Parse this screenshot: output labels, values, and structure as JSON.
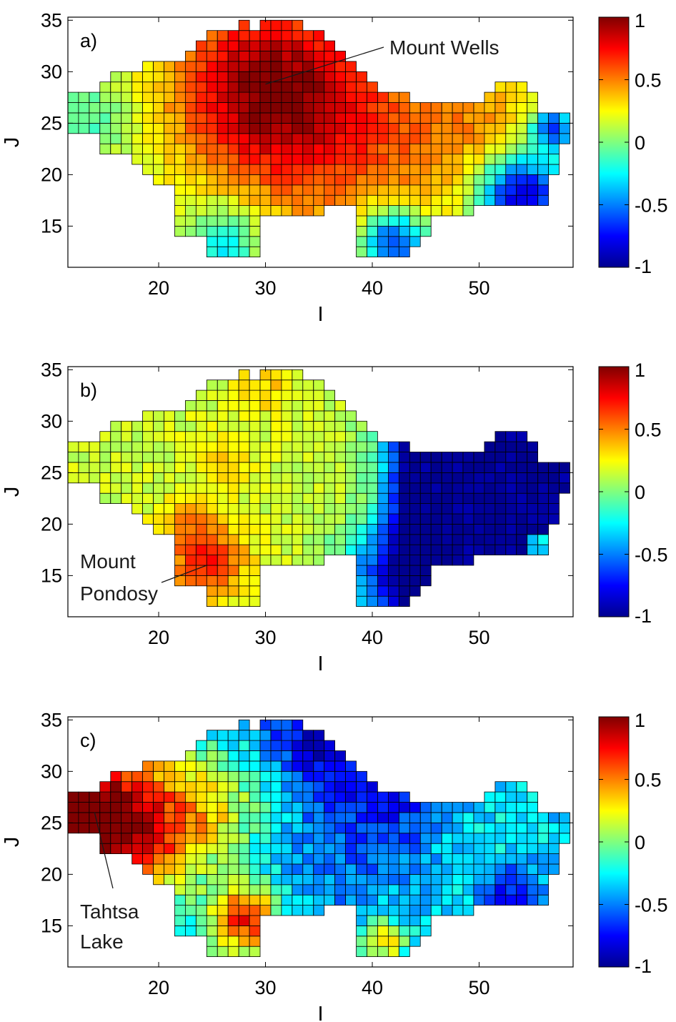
{
  "figure": {
    "note": ""
  },
  "chart_data": [
    {
      "type": "heatmap",
      "panel_label": "a)",
      "xlabel": "I",
      "ylabel": "J",
      "xlim": [
        11.5,
        58.8
      ],
      "ylim": [
        11,
        35.3
      ],
      "xticks": [
        "20",
        "30",
        "40",
        "50"
      ],
      "yticks": [
        "15",
        "20",
        "25",
        "30",
        "35"
      ],
      "colorbar_ticks": [
        "1",
        "0.5",
        "0",
        "-0.5",
        "-1"
      ],
      "colorbar_range": [
        -1,
        1
      ],
      "colormap": "jet",
      "annotations": [
        {
          "text": "Mount Wells",
          "x": 30,
          "y": 29
        }
      ],
      "region_columns_I": [
        12,
        58
      ],
      "region_rows_J": [
        12,
        34
      ],
      "value_pattern": {
        "peak": {
          "I": 30,
          "J": 29,
          "value": 0.9
        },
        "west_plateau": 0.15,
        "southeast_minimum": {
          "I": 54,
          "J": 17,
          "value": -0.9
        },
        "south_lobe_minimum": {
          "I": 42,
          "J": 13,
          "value": -0.8
        }
      }
    },
    {
      "type": "heatmap",
      "panel_label": "b)",
      "xlabel": "I",
      "ylabel": "J",
      "xlim": [
        11.5,
        58.8
      ],
      "ylim": [
        11,
        35.3
      ],
      "xticks": [
        "20",
        "30",
        "40",
        "50"
      ],
      "yticks": [
        "15",
        "20",
        "25",
        "30",
        "35"
      ],
      "colorbar_ticks": [
        "1",
        "0.5",
        "0",
        "-0.5",
        "-1"
      ],
      "colorbar_range": [
        -1,
        1
      ],
      "colormap": "jet",
      "annotations": [
        {
          "text": "Mount",
          "x": 24.5,
          "y": 16
        },
        {
          "text": "Pondosy",
          "x": 24.5,
          "y": 16
        }
      ],
      "value_pattern": {
        "peak": {
          "I": 24,
          "J": 16,
          "value": 0.7
        },
        "west_plateau": 0.2,
        "east_minimum": {
          "I": 50,
          "J": 23,
          "value": -1.0
        }
      }
    },
    {
      "type": "heatmap",
      "panel_label": "c)",
      "xlabel": "I",
      "ylabel": "J",
      "xlim": [
        11.5,
        58.8
      ],
      "ylim": [
        11,
        35.3
      ],
      "xticks": [
        "20",
        "30",
        "40",
        "50"
      ],
      "yticks": [
        "15",
        "20",
        "25",
        "30",
        "35"
      ],
      "colorbar_ticks": [
        "1",
        "0.5",
        "0",
        "-0.5",
        "-1"
      ],
      "colorbar_range": [
        -1,
        1
      ],
      "colormap": "jet",
      "annotations": [
        {
          "text": "Tahtsa",
          "x": 14,
          "y": 26
        },
        {
          "text": "Lake",
          "x": 14,
          "y": 26
        }
      ],
      "value_pattern": {
        "peak": {
          "I": 12,
          "J": 25,
          "value": 0.95
        },
        "secondary_peak": {
          "I": 28,
          "J": 15,
          "value": 0.7
        },
        "east_minimum": {
          "I": 40,
          "J": 27,
          "value": -0.8
        }
      }
    }
  ],
  "colors": {
    "cell_border": "#000000",
    "frame": "#000000",
    "annotation_line": "#1a1a1a"
  }
}
